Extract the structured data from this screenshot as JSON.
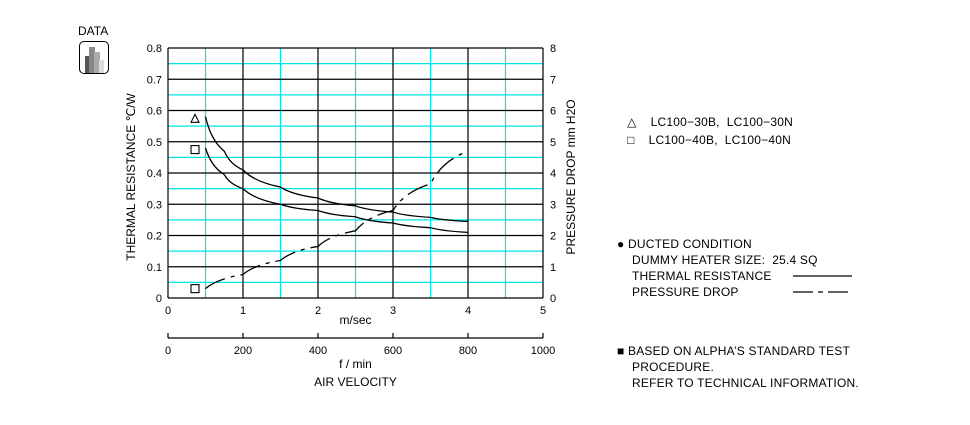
{
  "badge": {
    "label": "DATA",
    "icon": "bar-chart-icon"
  },
  "chart_data": {
    "type": "line",
    "title": "",
    "xlabel": "AIR VELOCITY",
    "x_primary_unit": "m/sec",
    "x_secondary_unit": "f / min",
    "ylabel_left": "THERMAL  RESISTANCE  ℃/W",
    "ylabel_right": "PRESSURE  DROP   mm H2O",
    "xlim": [
      0,
      5
    ],
    "ylim_left": [
      0,
      0.8
    ],
    "ylim_right": [
      0,
      8
    ],
    "x_ticks": [
      "0",
      "1",
      "2",
      "3",
      "4",
      "5"
    ],
    "x_secondary_ticks": [
      "0",
      "200",
      "400",
      "600",
      "800",
      "1000"
    ],
    "y_left_ticks": [
      "0",
      "0.1",
      "0.2",
      "0.3",
      "0.4",
      "0.5",
      "0.6",
      "0.7",
      "0.8"
    ],
    "y_right_ticks": [
      "0",
      "1",
      "2",
      "3",
      "4",
      "5",
      "6",
      "7",
      "8"
    ],
    "grid": true,
    "series": [
      {
        "name": "LC100-30B, LC100-30N (thermal resistance)",
        "marker": "triangle",
        "style": "solid",
        "axis": "left",
        "x": [
          0.5,
          0.75,
          1.0,
          1.5,
          2.0,
          2.5,
          3.0,
          3.5,
          4.0
        ],
        "y": [
          0.58,
          0.47,
          0.41,
          0.355,
          0.32,
          0.295,
          0.275,
          0.258,
          0.245
        ]
      },
      {
        "name": "LC100-40B, LC100-40N (thermal resistance)",
        "marker": "square",
        "style": "solid",
        "axis": "left",
        "x": [
          0.5,
          0.75,
          1.0,
          1.5,
          2.0,
          2.5,
          3.0,
          3.5,
          4.0
        ],
        "y": [
          0.48,
          0.395,
          0.35,
          0.3,
          0.28,
          0.26,
          0.24,
          0.225,
          0.21
        ]
      },
      {
        "name": "Pressure drop",
        "marker": "square",
        "style": "dash-dot",
        "axis": "right",
        "x": [
          0.5,
          1.0,
          1.5,
          2.0,
          2.5,
          3.0,
          3.5,
          4.0
        ],
        "y": [
          0.3,
          0.75,
          1.2,
          1.65,
          2.15,
          2.8,
          3.65,
          4.7
        ]
      }
    ],
    "legend": [
      {
        "symbol": "△",
        "label": "LC100−30B,  LC100−30N"
      },
      {
        "symbol": "□",
        "label": "LC100−40B,  LC100−40N"
      }
    ],
    "annotations": {
      "condition_title": "DUCTED CONDITION",
      "heater": "DUMMY HEATER SIZE:  25.4 SQ",
      "thermal_label": "THERMAL RESISTANCE",
      "pressure_label": "PRESSURE DROP",
      "note_line1": "BASED ON ALPHA’S STANDARD TEST",
      "note_line2": "PROCEDURE.",
      "note_line3": "REFER TO TECHNICAL INFORMATION."
    },
    "legend_position": "right",
    "colors": {
      "major_grid": "#000000",
      "minor_grid": "#00e5e5",
      "curve": "#000000"
    }
  }
}
